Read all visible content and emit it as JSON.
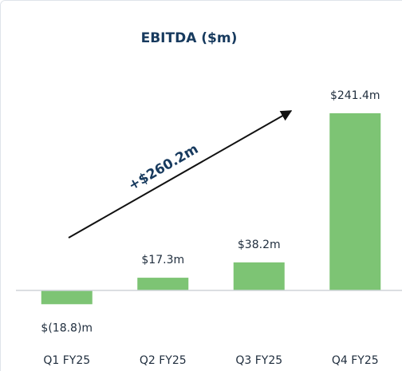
{
  "chart_data": {
    "type": "bar",
    "title": "EBITDA ($m)",
    "categories": [
      "Q1 FY25",
      "Q2 FY25",
      "Q3 FY25",
      "Q4 FY25"
    ],
    "values": [
      -18.8,
      17.3,
      38.2,
      241.4
    ],
    "value_labels": [
      "$(18.8)m",
      "$17.3m",
      "$38.2m",
      "$241.4m"
    ],
    "color": "#7dc474",
    "ylim": [
      -40,
      300
    ],
    "annotation": "+$260.2m"
  }
}
